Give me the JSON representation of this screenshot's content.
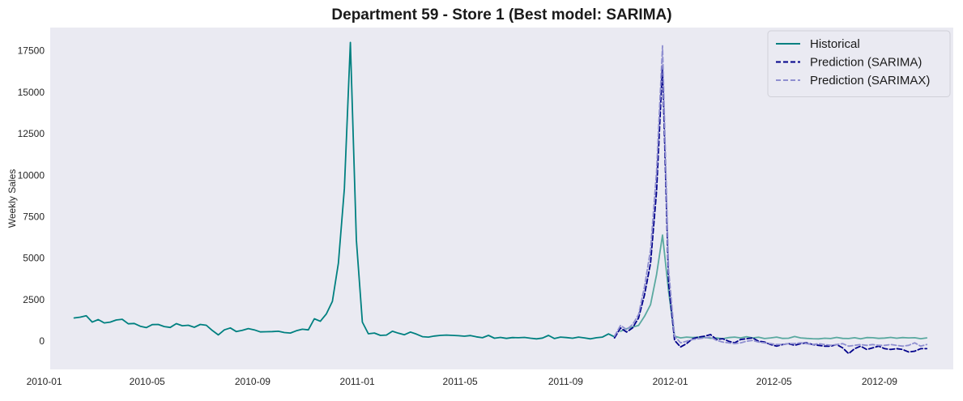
{
  "chart_data": {
    "type": "line",
    "title": "Department 59 - Store 1 (Best model: SARIMA)",
    "xlabel": "",
    "ylabel": "Weekly Sales",
    "x_ticks": [
      "2010-01",
      "2010-05",
      "2010-09",
      "2011-01",
      "2011-05",
      "2011-09",
      "2012-01",
      "2012-05",
      "2012-09"
    ],
    "y_ticks": [
      "0",
      "2500",
      "5000",
      "7500",
      "10000",
      "12500",
      "15000",
      "17500"
    ],
    "xlim": [
      "2010-01-08",
      "2012-11-26"
    ],
    "ylim": [
      -1700,
      18900
    ],
    "grid": false,
    "legend_position": "top-right",
    "background": "#eaeaf2",
    "series": [
      {
        "name": "Historical",
        "color": "#008080",
        "style": "solid",
        "x": [
          "2010-02-05",
          "2010-02-12",
          "2010-02-19",
          "2010-02-26",
          "2010-03-05",
          "2010-03-12",
          "2010-03-19",
          "2010-03-26",
          "2010-04-02",
          "2010-04-09",
          "2010-04-16",
          "2010-04-23",
          "2010-04-30",
          "2010-05-07",
          "2010-05-14",
          "2010-05-21",
          "2010-05-28",
          "2010-06-04",
          "2010-06-11",
          "2010-06-18",
          "2010-06-25",
          "2010-07-02",
          "2010-07-09",
          "2010-07-16",
          "2010-07-23",
          "2010-07-30",
          "2010-08-06",
          "2010-08-13",
          "2010-08-20",
          "2010-08-27",
          "2010-09-03",
          "2010-09-10",
          "2010-09-17",
          "2010-09-24",
          "2010-10-01",
          "2010-10-08",
          "2010-10-15",
          "2010-10-22",
          "2010-10-29",
          "2010-11-05",
          "2010-11-12",
          "2010-11-19",
          "2010-11-26",
          "2010-12-03",
          "2010-12-10",
          "2010-12-17",
          "2010-12-24",
          "2010-12-31",
          "2011-01-07",
          "2011-01-14",
          "2011-01-21",
          "2011-01-28",
          "2011-02-04",
          "2011-02-11",
          "2011-02-18",
          "2011-02-25",
          "2011-03-04",
          "2011-03-11",
          "2011-03-18",
          "2011-03-25",
          "2011-04-01",
          "2011-04-08",
          "2011-04-15",
          "2011-04-22",
          "2011-04-29",
          "2011-05-06",
          "2011-05-13",
          "2011-05-20",
          "2011-05-27",
          "2011-06-03",
          "2011-06-10",
          "2011-06-17",
          "2011-06-24",
          "2011-07-01",
          "2011-07-08",
          "2011-07-15",
          "2011-07-22",
          "2011-07-29",
          "2011-08-05",
          "2011-08-12",
          "2011-08-19",
          "2011-08-26",
          "2011-09-02",
          "2011-09-09",
          "2011-09-16",
          "2011-09-23",
          "2011-09-30",
          "2011-10-07",
          "2011-10-14",
          "2011-10-21",
          "2011-10-28"
        ],
        "values": [
          1400,
          1450,
          1530,
          1150,
          1300,
          1100,
          1150,
          1280,
          1320,
          1050,
          1070,
          900,
          820,
          1000,
          1010,
          880,
          830,
          1060,
          930,
          960,
          840,
          1010,
          960,
          650,
          380,
          680,
          800,
          580,
          660,
          760,
          680,
          560,
          570,
          580,
          600,
          520,
          490,
          630,
          720,
          680,
          1350,
          1200,
          1650,
          2400,
          4700,
          9200,
          18000,
          6100,
          1150,
          450,
          490,
          350,
          370,
          600,
          480,
          390,
          550,
          430,
          270,
          250,
          310,
          350,
          370,
          350,
          330,
          300,
          340,
          260,
          210,
          350,
          180,
          230,
          170,
          220,
          210,
          230,
          180,
          140,
          190,
          350,
          160,
          250,
          220,
          180,
          250,
          200,
          140,
          210,
          250,
          440,
          260
        ]
      },
      {
        "name": "",
        "color": "#5aa9a0",
        "style": "solid",
        "x": [
          "2011-11-04",
          "2011-11-11",
          "2011-11-18",
          "2011-11-25",
          "2011-12-02",
          "2011-12-09",
          "2011-12-16",
          "2011-12-23",
          "2011-12-30",
          "2012-01-06",
          "2012-01-13",
          "2012-01-20",
          "2012-01-27",
          "2012-02-03",
          "2012-02-10",
          "2012-02-17",
          "2012-02-24",
          "2012-03-02",
          "2012-03-09",
          "2012-03-16",
          "2012-03-23",
          "2012-03-30",
          "2012-04-06",
          "2012-04-13",
          "2012-04-20",
          "2012-04-27",
          "2012-05-04",
          "2012-05-11",
          "2012-05-18",
          "2012-05-25",
          "2012-06-01",
          "2012-06-08",
          "2012-06-15",
          "2012-06-22",
          "2012-06-29",
          "2012-07-06",
          "2012-07-13",
          "2012-07-20",
          "2012-07-27",
          "2012-08-03",
          "2012-08-10",
          "2012-08-17",
          "2012-08-24",
          "2012-08-31",
          "2012-09-07",
          "2012-09-14",
          "2012-09-21",
          "2012-09-28",
          "2012-10-05",
          "2012-10-12",
          "2012-10-19",
          "2012-10-26"
        ],
        "values": [
          600,
          750,
          850,
          950,
          1500,
          2200,
          4000,
          6400,
          3000,
          300,
          200,
          250,
          220,
          250,
          230,
          180,
          200,
          150,
          220,
          250,
          200,
          270,
          200,
          240,
          160,
          200,
          250,
          170,
          180,
          280,
          200,
          170,
          150,
          140,
          180,
          160,
          230,
          170,
          160,
          210,
          140,
          220,
          210,
          170,
          190,
          230,
          180,
          220,
          200,
          210,
          150,
          200
        ]
      },
      {
        "name": "Prediction (SARIMA)",
        "color": "#00008b",
        "style": "dashed",
        "x": [
          "2011-10-28",
          "2011-11-04",
          "2011-11-11",
          "2011-11-18",
          "2011-11-25",
          "2011-12-02",
          "2011-12-09",
          "2011-12-16",
          "2011-12-23",
          "2011-12-30",
          "2012-01-06",
          "2012-01-13",
          "2012-01-20",
          "2012-01-27",
          "2012-02-03",
          "2012-02-10",
          "2012-02-17",
          "2012-02-24",
          "2012-03-02",
          "2012-03-09",
          "2012-03-16",
          "2012-03-23",
          "2012-03-30",
          "2012-04-06",
          "2012-04-13",
          "2012-04-20",
          "2012-04-27",
          "2012-05-04",
          "2012-05-11",
          "2012-05-18",
          "2012-05-25",
          "2012-06-01",
          "2012-06-08",
          "2012-06-15",
          "2012-06-22",
          "2012-06-29",
          "2012-07-06",
          "2012-07-13",
          "2012-07-20",
          "2012-07-27",
          "2012-08-03",
          "2012-08-10",
          "2012-08-17",
          "2012-08-24",
          "2012-08-31",
          "2012-09-07",
          "2012-09-14",
          "2012-09-21",
          "2012-09-28",
          "2012-10-05",
          "2012-10-12",
          "2012-10-19",
          "2012-10-26"
        ],
        "values": [
          200,
          800,
          550,
          800,
          1400,
          2800,
          4700,
          9000,
          16600,
          3500,
          50,
          -350,
          -150,
          150,
          250,
          300,
          400,
          100,
          150,
          0,
          -100,
          100,
          150,
          200,
          0,
          -50,
          -200,
          -300,
          -200,
          -150,
          -250,
          -150,
          -100,
          -200,
          -250,
          -300,
          -300,
          -200,
          -400,
          -750,
          -450,
          -300,
          -500,
          -400,
          -300,
          -450,
          -500,
          -450,
          -500,
          -650,
          -600,
          -450,
          -450
        ]
      },
      {
        "name": "Prediction (SARIMAX)",
        "color": "#8f8fd0",
        "style": "dashed",
        "x": [
          "2011-10-28",
          "2011-11-04",
          "2011-11-11",
          "2011-11-18",
          "2011-11-25",
          "2011-12-02",
          "2011-12-09",
          "2011-12-16",
          "2011-12-23",
          "2011-12-30",
          "2012-01-06",
          "2012-01-13",
          "2012-01-20",
          "2012-01-27",
          "2012-02-03",
          "2012-02-10",
          "2012-02-17",
          "2012-02-24",
          "2012-03-02",
          "2012-03-09",
          "2012-03-16",
          "2012-03-23",
          "2012-03-30",
          "2012-04-06",
          "2012-04-13",
          "2012-04-20",
          "2012-04-27",
          "2012-05-04",
          "2012-05-11",
          "2012-05-18",
          "2012-05-25",
          "2012-06-01",
          "2012-06-08",
          "2012-06-15",
          "2012-06-22",
          "2012-06-29",
          "2012-07-06",
          "2012-07-13",
          "2012-07-20",
          "2012-07-27",
          "2012-08-03",
          "2012-08-10",
          "2012-08-17",
          "2012-08-24",
          "2012-08-31",
          "2012-09-07",
          "2012-09-14",
          "2012-09-21",
          "2012-09-28",
          "2012-10-05",
          "2012-10-12",
          "2012-10-19",
          "2012-10-26"
        ],
        "values": [
          300,
          950,
          700,
          1000,
          1600,
          3300,
          5500,
          10200,
          17800,
          4300,
          300,
          -100,
          0,
          100,
          150,
          200,
          250,
          50,
          -50,
          -100,
          -150,
          -100,
          0,
          50,
          -50,
          -100,
          -150,
          -200,
          -200,
          -150,
          -150,
          -100,
          -150,
          -200,
          -150,
          -200,
          -250,
          -200,
          -150,
          -300,
          -250,
          -200,
          -250,
          -200,
          -250,
          -250,
          -200,
          -250,
          -300,
          -250,
          -100,
          -300,
          -200
        ]
      }
    ]
  }
}
